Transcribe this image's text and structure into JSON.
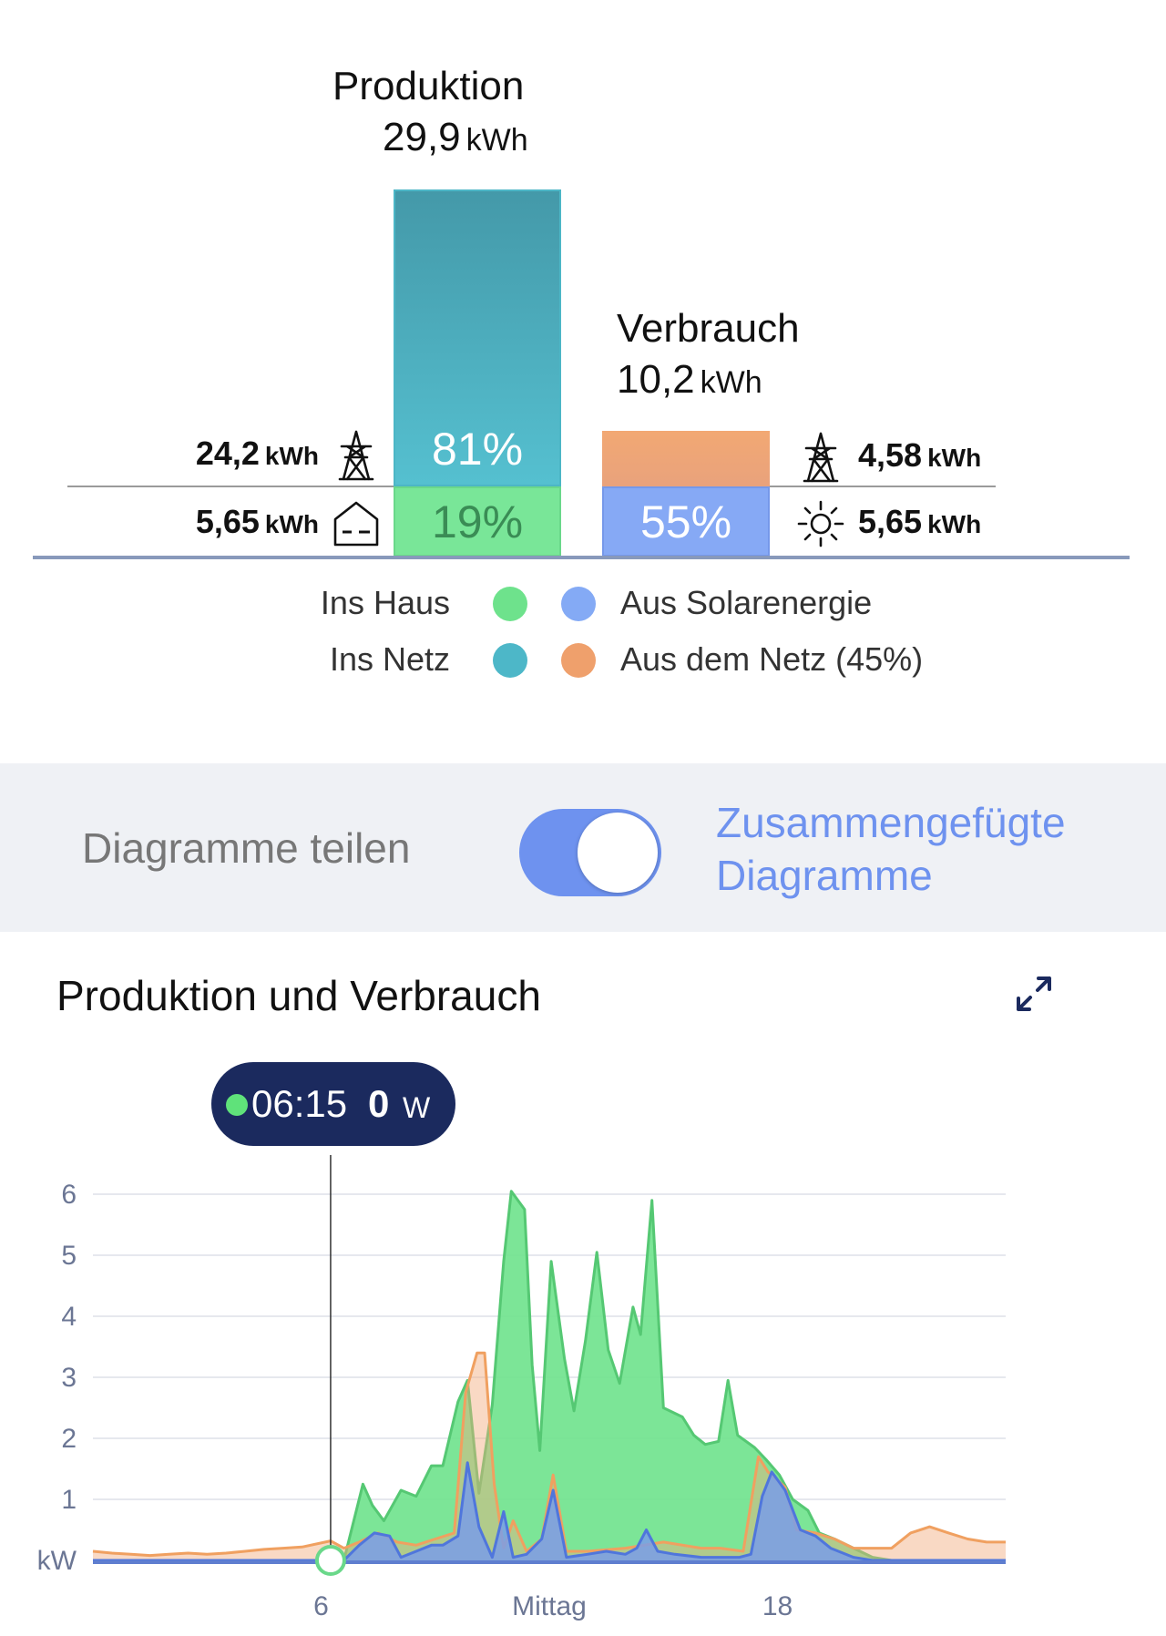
{
  "summary": {
    "production": {
      "title": "Produktion",
      "value": "29,9",
      "unit": "kWh"
    },
    "consumption": {
      "title": "Verbrauch",
      "value": "10,2",
      "unit": "kWh"
    },
    "production_bar": {
      "to_grid_pct_label": "81%",
      "to_home_pct_label": "19%",
      "to_grid_fraction": 0.81,
      "to_home_fraction": 0.19
    },
    "consumption_bar": {
      "from_grid_pct_label": "",
      "from_solar_pct_label": "55%",
      "from_solar_fraction": 0.55,
      "from_grid_fraction": 0.45
    },
    "left": {
      "to_grid": {
        "value": "24,2",
        "unit": "kWh",
        "icon": "power-pylon-icon"
      },
      "to_home": {
        "value": "5,65",
        "unit": "kWh",
        "icon": "house-icon"
      }
    },
    "right": {
      "from_grid": {
        "value": "4,58",
        "unit": "kWh",
        "icon": "power-pylon-icon"
      },
      "from_solar": {
        "value": "5,65",
        "unit": "kWh",
        "icon": "sun-icon"
      }
    },
    "legend": {
      "ins_haus": "Ins Haus",
      "ins_netz": "Ins Netz",
      "aus_solar": "Aus Solarenergie",
      "aus_netz": "Aus dem Netz (45%)"
    },
    "colors": {
      "green": "#6ee28c",
      "teal": "#4db7c8",
      "blue": "#84aaf5",
      "orange": "#efa06c"
    }
  },
  "toggle": {
    "left_label": "Diagramme teilen",
    "right_label_line1": "Zusammengefügte",
    "right_label_line2": "Diagramme",
    "state": "on",
    "accent": "#6e92ef"
  },
  "chart": {
    "title": "Produktion und Verbrauch",
    "expand_icon": "expand-arrows-icon",
    "tooltip": {
      "time": "06:15",
      "value": "0",
      "unit": "W"
    },
    "cursor_hour": 6.25
  },
  "chart_data": {
    "type": "area",
    "title": "Produktion und Verbrauch",
    "ylabel": "kW",
    "y_ticks": [
      "1",
      "2",
      "3",
      "4",
      "5",
      "6"
    ],
    "x_ticks": [
      {
        "hour": 6,
        "label": "6"
      },
      {
        "hour": 12,
        "label": "Mittag"
      },
      {
        "hour": 18,
        "label": "18"
      }
    ],
    "xlim": [
      0,
      24
    ],
    "ylim": [
      0,
      6.3
    ],
    "grid": true,
    "series": [
      {
        "color": "#6ee28c",
        "points": [
          [
            0,
            0
          ],
          [
            6.6,
            0
          ],
          [
            7.1,
            1.25
          ],
          [
            7.35,
            0.9
          ],
          [
            7.65,
            0.65
          ],
          [
            8.1,
            1.15
          ],
          [
            8.5,
            1.05
          ],
          [
            8.9,
            1.55
          ],
          [
            9.2,
            1.55
          ],
          [
            9.6,
            2.6
          ],
          [
            9.85,
            2.95
          ],
          [
            10.15,
            1.1
          ],
          [
            10.5,
            2.55
          ],
          [
            10.8,
            4.9
          ],
          [
            11.0,
            6.05
          ],
          [
            11.35,
            5.75
          ],
          [
            11.55,
            3.2
          ],
          [
            11.75,
            1.8
          ],
          [
            12.05,
            4.9
          ],
          [
            12.4,
            3.3
          ],
          [
            12.65,
            2.45
          ],
          [
            12.95,
            3.6
          ],
          [
            13.25,
            5.05
          ],
          [
            13.55,
            3.45
          ],
          [
            13.85,
            2.9
          ],
          [
            14.2,
            4.15
          ],
          [
            14.4,
            3.7
          ],
          [
            14.7,
            5.9
          ],
          [
            15.0,
            2.5
          ],
          [
            15.5,
            2.35
          ],
          [
            15.8,
            2.05
          ],
          [
            16.1,
            1.9
          ],
          [
            16.45,
            1.95
          ],
          [
            16.7,
            2.95
          ],
          [
            16.95,
            2.05
          ],
          [
            17.4,
            1.85
          ],
          [
            17.7,
            1.65
          ],
          [
            18.05,
            1.4
          ],
          [
            18.4,
            1.0
          ],
          [
            18.8,
            0.82
          ],
          [
            19.1,
            0.45
          ],
          [
            19.5,
            0.35
          ],
          [
            20.0,
            0.2
          ],
          [
            20.5,
            0.05
          ],
          [
            21.0,
            0
          ]
        ]
      },
      {
        "color": "#efa06c",
        "points": [
          [
            0,
            0.15
          ],
          [
            0.5,
            0.12
          ],
          [
            1,
            0.1
          ],
          [
            1.5,
            0.08
          ],
          [
            2,
            0.1
          ],
          [
            2.5,
            0.12
          ],
          [
            3,
            0.1
          ],
          [
            3.5,
            0.12
          ],
          [
            4,
            0.15
          ],
          [
            4.5,
            0.18
          ],
          [
            5,
            0.2
          ],
          [
            5.5,
            0.22
          ],
          [
            6.25,
            0.32
          ],
          [
            6.6,
            0.2
          ],
          [
            7,
            0.3
          ],
          [
            7.5,
            0.45
          ],
          [
            8,
            0.3
          ],
          [
            8.5,
            0.25
          ],
          [
            9,
            0.35
          ],
          [
            9.5,
            0.45
          ],
          [
            9.8,
            2.75
          ],
          [
            10.1,
            3.4
          ],
          [
            10.3,
            3.4
          ],
          [
            10.55,
            1.25
          ],
          [
            10.8,
            0.2
          ],
          [
            11.05,
            0.65
          ],
          [
            11.4,
            0.15
          ],
          [
            11.8,
            0.35
          ],
          [
            12.1,
            1.4
          ],
          [
            12.45,
            0.15
          ],
          [
            13.0,
            0.15
          ],
          [
            14.0,
            0.2
          ],
          [
            15.0,
            0.3
          ],
          [
            16.0,
            0.2
          ],
          [
            16.5,
            0.2
          ],
          [
            17.1,
            0.15
          ],
          [
            17.5,
            1.7
          ],
          [
            17.75,
            1.45
          ],
          [
            18.2,
            1.2
          ],
          [
            18.5,
            0.5
          ],
          [
            19.0,
            0.45
          ],
          [
            19.5,
            0.35
          ],
          [
            20.0,
            0.2
          ],
          [
            20.5,
            0.2
          ],
          [
            21.0,
            0.2
          ],
          [
            21.5,
            0.45
          ],
          [
            22.0,
            0.55
          ],
          [
            22.5,
            0.45
          ],
          [
            23.0,
            0.35
          ],
          [
            23.5,
            0.3
          ],
          [
            24.0,
            0.3
          ]
        ]
      },
      {
        "color": "#7a9ee8",
        "points": [
          [
            0,
            0
          ],
          [
            6.6,
            0
          ],
          [
            7.0,
            0.25
          ],
          [
            7.4,
            0.45
          ],
          [
            7.8,
            0.4
          ],
          [
            8.1,
            0.05
          ],
          [
            8.5,
            0.15
          ],
          [
            8.9,
            0.25
          ],
          [
            9.2,
            0.25
          ],
          [
            9.6,
            0.4
          ],
          [
            9.85,
            1.6
          ],
          [
            10.15,
            0.55
          ],
          [
            10.5,
            0.05
          ],
          [
            10.8,
            0.8
          ],
          [
            11.05,
            0.05
          ],
          [
            11.4,
            0.1
          ],
          [
            11.8,
            0.35
          ],
          [
            12.1,
            1.15
          ],
          [
            12.45,
            0.05
          ],
          [
            13.0,
            0.1
          ],
          [
            13.5,
            0.15
          ],
          [
            14.0,
            0.1
          ],
          [
            14.3,
            0.2
          ],
          [
            14.55,
            0.5
          ],
          [
            14.85,
            0.15
          ],
          [
            15.3,
            0.1
          ],
          [
            16.0,
            0.05
          ],
          [
            16.5,
            0.05
          ],
          [
            17.0,
            0.05
          ],
          [
            17.3,
            0.1
          ],
          [
            17.6,
            1.05
          ],
          [
            17.85,
            1.45
          ],
          [
            18.2,
            1.15
          ],
          [
            18.6,
            0.5
          ],
          [
            19.0,
            0.4
          ],
          [
            19.4,
            0.2
          ],
          [
            20.0,
            0.05
          ],
          [
            20.5,
            0
          ],
          [
            24.0,
            0
          ]
        ]
      }
    ]
  }
}
